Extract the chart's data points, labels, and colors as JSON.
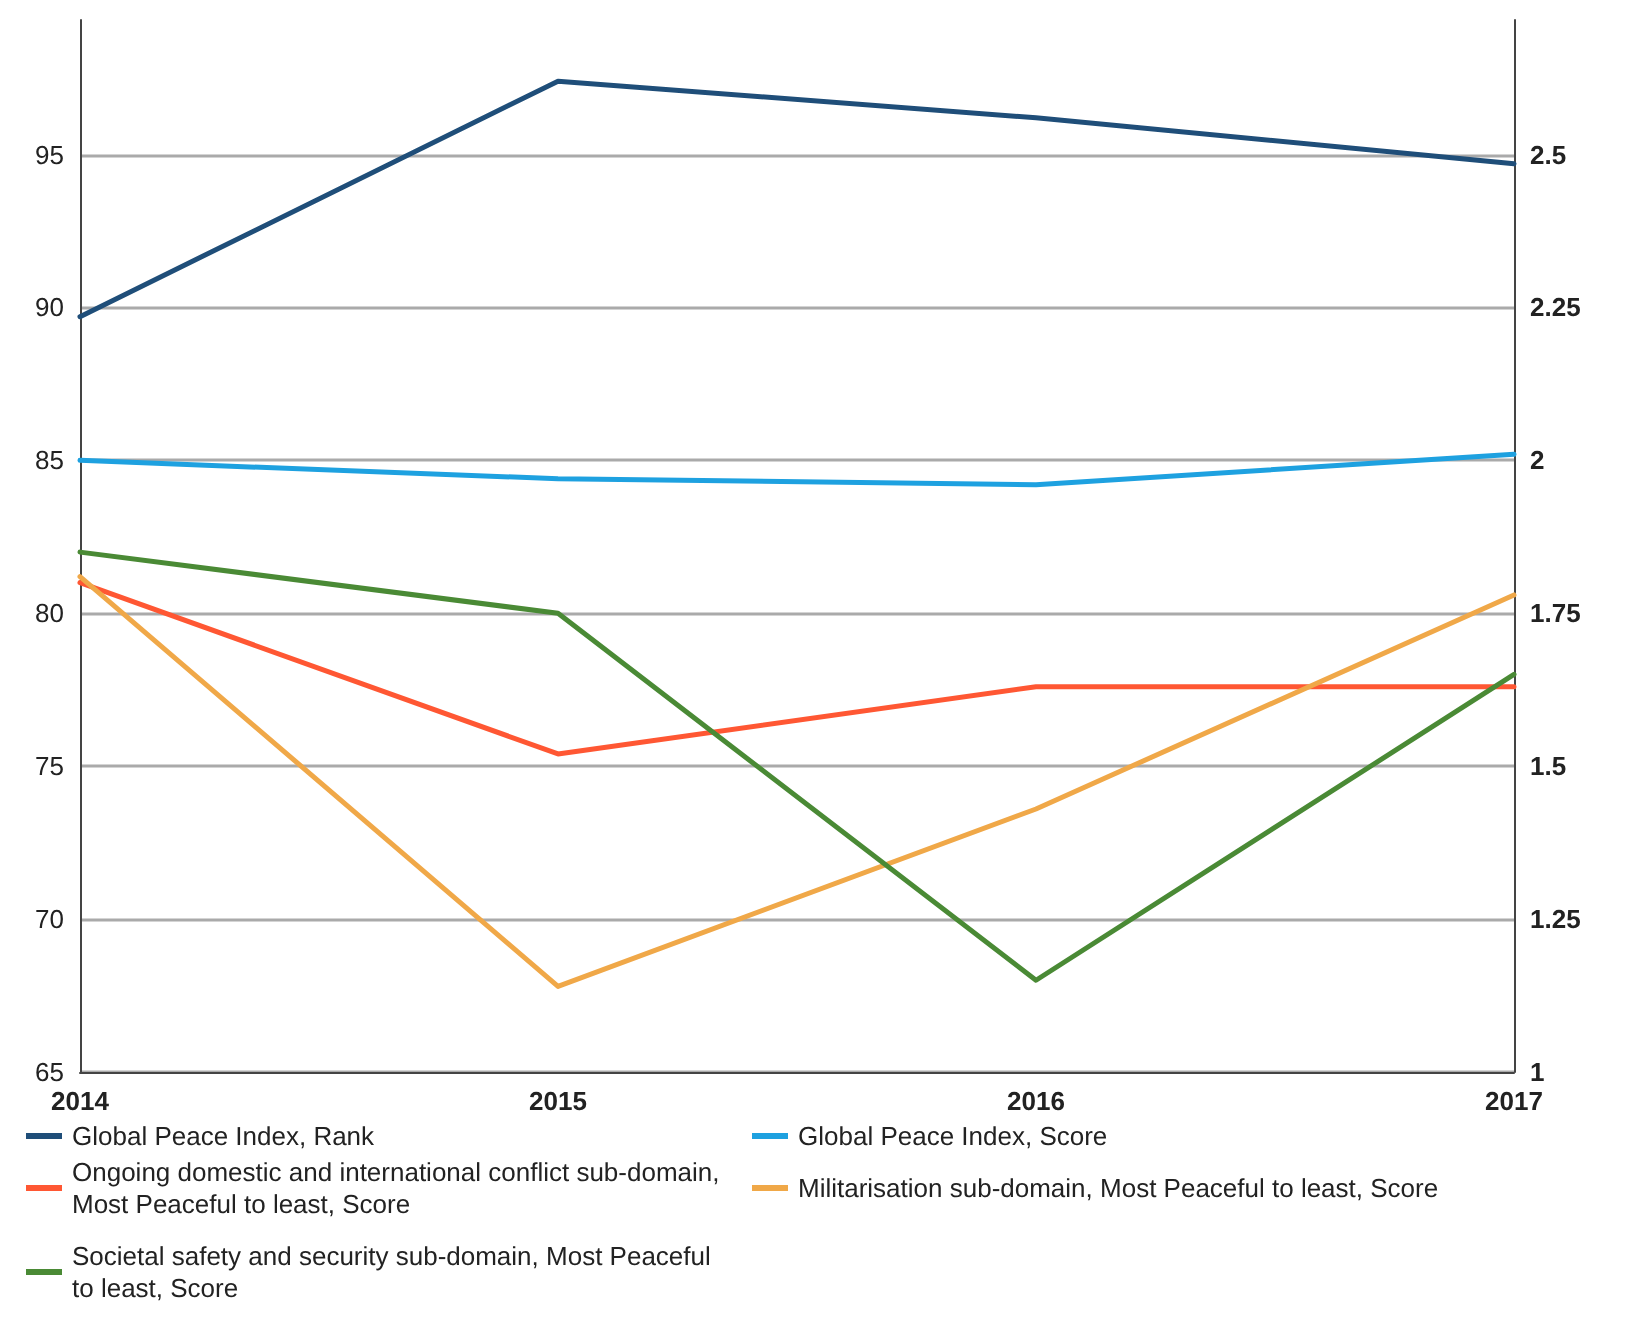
{
  "chart_data": {
    "type": "line",
    "categories": [
      "2014",
      "2015",
      "2016",
      "2017"
    ],
    "series": [
      {
        "name": "Global Peace Index, Rank",
        "color": "#1f4e79",
        "values": [
          89.7,
          97.4,
          96.2,
          94.7
        ]
      },
      {
        "name": "Global Peace Index, Score",
        "color": "#1ea1e0",
        "axis": "y2",
        "values": [
          2.0,
          1.97,
          1.96,
          2.01
        ]
      },
      {
        "name": "Ongoing domestic and international conflict sub-domain, Most Peaceful to least, Score",
        "color": "#ff5733",
        "axis": "y2",
        "values": [
          1.8,
          1.52,
          1.63,
          1.63
        ]
      },
      {
        "name": "Militarisation sub-domain, Most Peaceful to least, Score",
        "color": "#f0a848",
        "axis": "y2",
        "values": [
          1.81,
          1.14,
          1.43,
          1.78
        ]
      },
      {
        "name": "Societal safety and security sub-domain, Most Peaceful to least, Score",
        "color": "#4a8a35",
        "axis": "y2",
        "values": [
          1.85,
          1.75,
          1.15,
          1.65
        ]
      }
    ],
    "ylim": [
      65,
      99.4
    ],
    "yticks": [
      65,
      70,
      75,
      80,
      85,
      90,
      95
    ],
    "y2lim": [
      1,
      2.72
    ],
    "y2ticks": [
      1,
      1.25,
      1.5,
      1.75,
      2,
      2.25,
      2.5
    ],
    "grid": "y",
    "legend": "bottom",
    "marker": "none",
    "line_style": "solid"
  }
}
